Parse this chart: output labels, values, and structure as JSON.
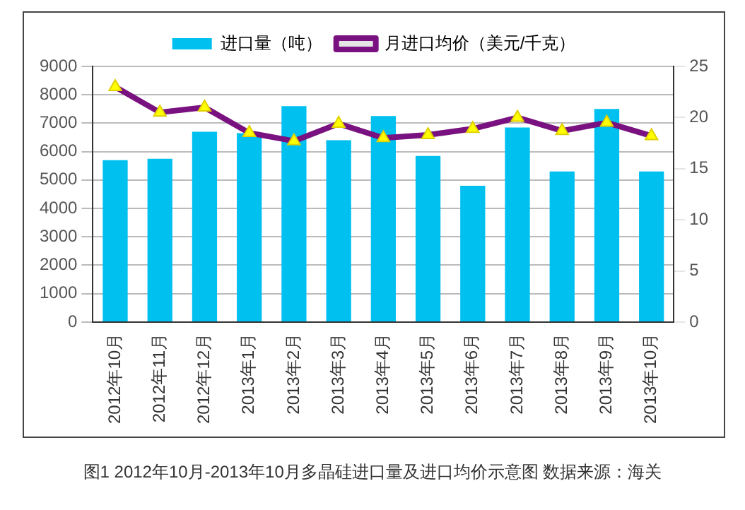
{
  "chart_data": {
    "type": "bar",
    "categories": [
      "2012年10月",
      "2012年11月",
      "2012年12月",
      "2013年1月",
      "2013年2月",
      "2013年3月",
      "2013年4月",
      "2013年5月",
      "2013年6月",
      "2013年7月",
      "2013年8月",
      "2013年9月",
      "2013年10月"
    ],
    "series": [
      {
        "name": "进口量（吨）",
        "color": "#00c0f0",
        "values": [
          5700,
          5750,
          6700,
          6650,
          7600,
          6400,
          7250,
          5850,
          4800,
          6850,
          5300,
          7500,
          5300
        ]
      },
      {
        "name": "月进口均价（美元/千克）",
        "type": "line",
        "axis": "y2",
        "color": "#7a1180",
        "marker": "triangle",
        "values": [
          23,
          20.5,
          21,
          18.5,
          17.7,
          19.4,
          18,
          18.3,
          18.9,
          20,
          18.7,
          19.5,
          18.2
        ]
      }
    ],
    "ylim": [
      0,
      9000
    ],
    "yticks": [
      0,
      1000,
      2000,
      3000,
      4000,
      5000,
      6000,
      7000,
      8000,
      9000
    ],
    "y2lim": [
      0,
      25
    ],
    "y2ticks": [
      0,
      5,
      10,
      15,
      20,
      25
    ],
    "grid": "y",
    "legend": "top",
    "annotations": [
      "图1 2012年10月-2013年10月多晶硅进口量及进口均价示意图 数据来源：海关"
    ]
  }
}
